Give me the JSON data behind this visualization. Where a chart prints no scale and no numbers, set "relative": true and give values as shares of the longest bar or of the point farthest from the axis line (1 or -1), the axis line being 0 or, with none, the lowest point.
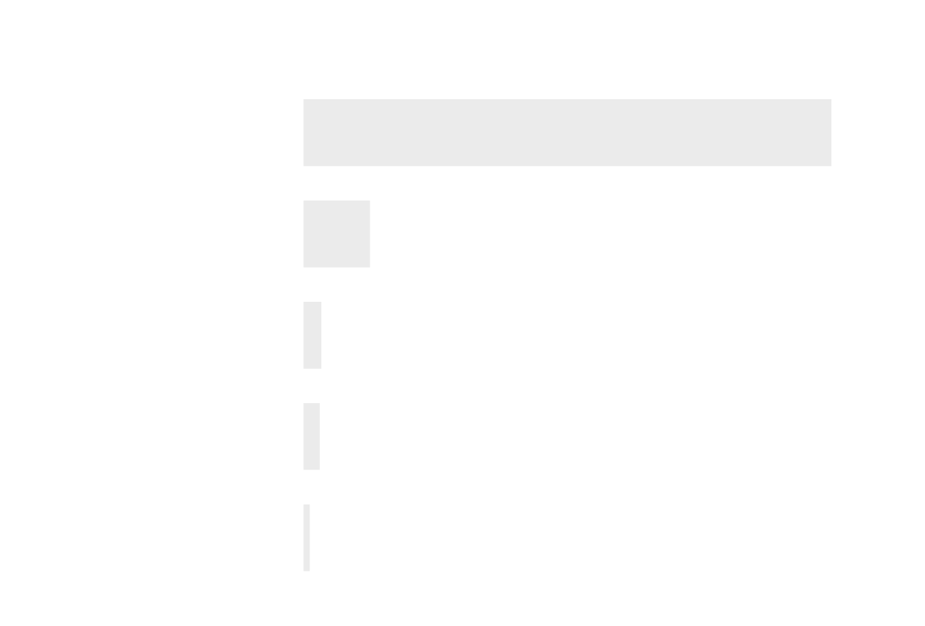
{
  "chart_data": {
    "type": "bar",
    "orientation": "horizontal",
    "relative": true,
    "categories": [
      null,
      null,
      null,
      null,
      null
    ],
    "values": [
      1,
      0.126,
      0.034,
      0.031,
      0.012
    ],
    "color": "#ebebeb",
    "grid": false,
    "legend": false
  }
}
